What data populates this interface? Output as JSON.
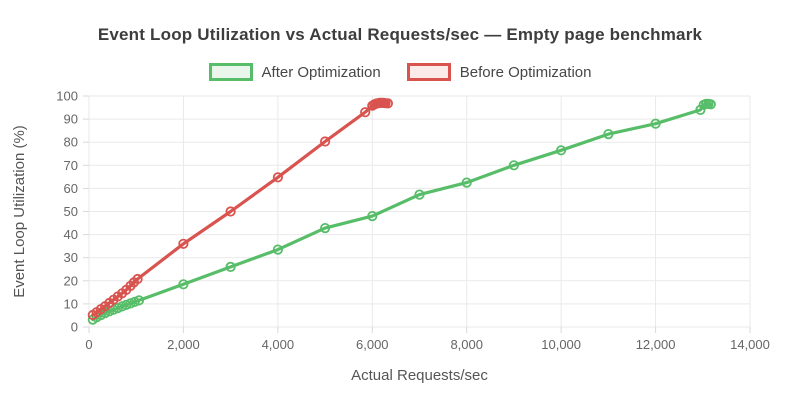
{
  "chart_data": {
    "type": "line",
    "title": "Event Loop Utilization vs Actual Requests/sec — Empty page benchmark",
    "xlabel": "Actual Requests/sec",
    "ylabel": "Event Loop Utilization (%)",
    "xlim": [
      0,
      14000
    ],
    "ylim": [
      0,
      100
    ],
    "x_tick_values": [
      0,
      2000,
      4000,
      6000,
      8000,
      10000,
      12000,
      14000
    ],
    "x_tick_labels": [
      "0",
      "2,000",
      "4,000",
      "6,000",
      "8,000",
      "10,000",
      "12,000",
      "14,000"
    ],
    "y_tick_values": [
      0,
      10,
      20,
      30,
      40,
      50,
      60,
      70,
      80,
      90,
      100
    ],
    "y_tick_labels": [
      "0",
      "10",
      "20",
      "30",
      "40",
      "50",
      "60",
      "70",
      "80",
      "90",
      "100"
    ],
    "grid": true,
    "legend_position": "top",
    "colors": {
      "grid_line": "#e9e9e9",
      "tick_mark": "#d9d9d9",
      "tick_text": "#666666",
      "axis_title_text": "#555555",
      "title_text": "#3d3d3d"
    },
    "series": [
      {
        "name": "After Optimization",
        "color": "#57bd68",
        "fill": "#eaf6ec",
        "points": [
          [
            80,
            3.2
          ],
          [
            160,
            4.2
          ],
          [
            250,
            5.1
          ],
          [
            340,
            6.0
          ],
          [
            430,
            6.8
          ],
          [
            520,
            7.5
          ],
          [
            610,
            8.2
          ],
          [
            700,
            8.9
          ],
          [
            790,
            9.6
          ],
          [
            880,
            10.2
          ],
          [
            970,
            10.9
          ],
          [
            1060,
            11.5
          ],
          [
            2000,
            18.5
          ],
          [
            3000,
            26
          ],
          [
            4000,
            33.5
          ],
          [
            5000,
            42.8
          ],
          [
            6000,
            48
          ],
          [
            7000,
            57.3
          ],
          [
            8000,
            62.5
          ],
          [
            9000,
            70
          ],
          [
            10000,
            76.5
          ],
          [
            11000,
            83.5
          ],
          [
            12000,
            88
          ],
          [
            12950,
            94
          ],
          [
            13020,
            96.2
          ],
          [
            13070,
            96.6
          ],
          [
            13120,
            96.6
          ],
          [
            13170,
            96.4
          ]
        ]
      },
      {
        "name": "Before Optimization",
        "color": "#d9534f",
        "fill": "#fbecea",
        "points": [
          [
            80,
            5.2
          ],
          [
            160,
            6.4
          ],
          [
            250,
            7.7
          ],
          [
            340,
            9.0
          ],
          [
            430,
            10.4
          ],
          [
            520,
            11.8
          ],
          [
            610,
            13.2
          ],
          [
            700,
            14.6
          ],
          [
            790,
            16.1
          ],
          [
            880,
            17.8
          ],
          [
            950,
            19.3
          ],
          [
            1030,
            20.8
          ],
          [
            2000,
            36
          ],
          [
            3000,
            50
          ],
          [
            4000,
            64.8
          ],
          [
            5000,
            80.3
          ],
          [
            5850,
            93
          ],
          [
            6000,
            95.8
          ],
          [
            6040,
            96.3
          ],
          [
            6080,
            96.7
          ],
          [
            6120,
            96.9
          ],
          [
            6160,
            97.0
          ],
          [
            6200,
            97.0
          ],
          [
            6240,
            97.0
          ],
          [
            6280,
            96.9
          ],
          [
            6330,
            96.8
          ]
        ]
      }
    ]
  }
}
